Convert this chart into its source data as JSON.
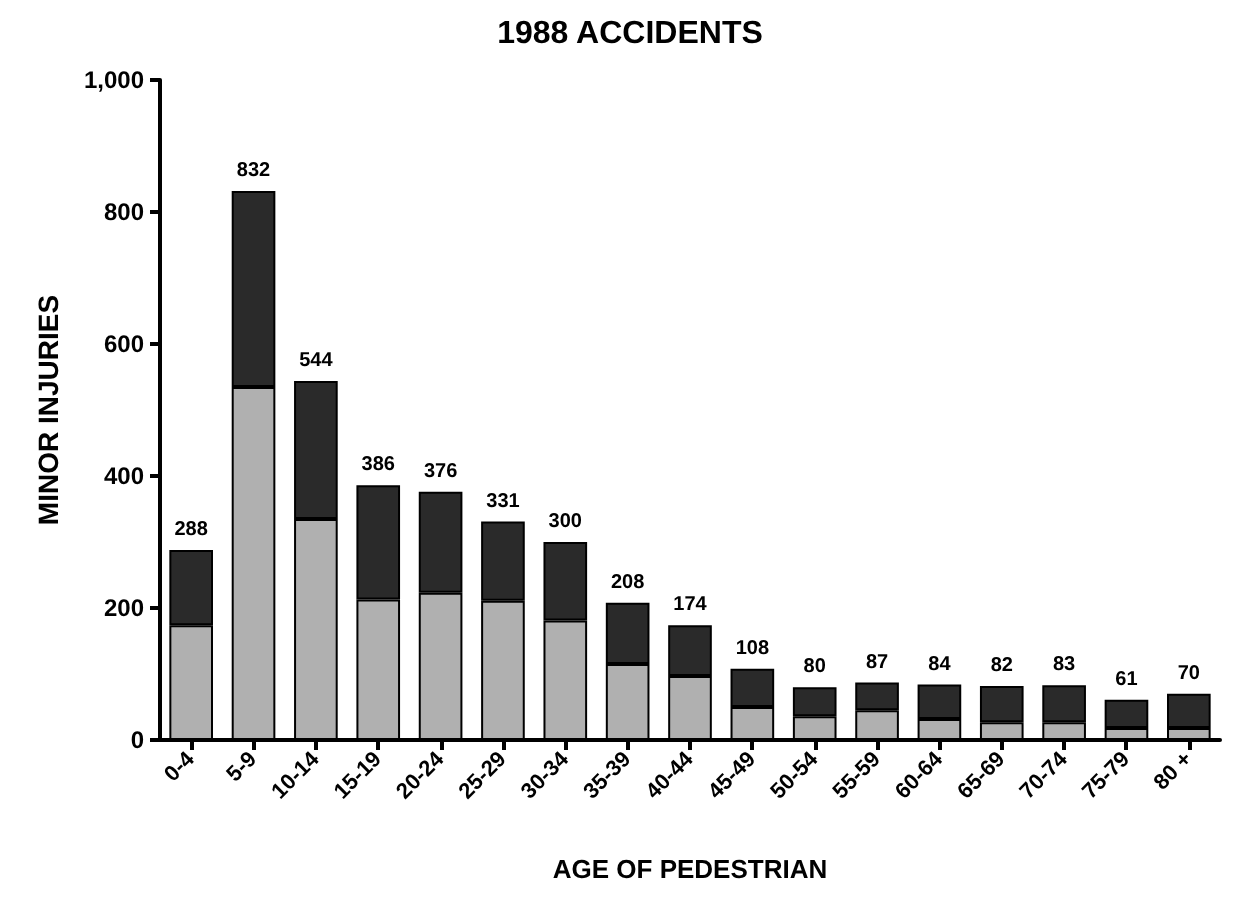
{
  "chart_data": {
    "type": "bar",
    "title": "1988 ACCIDENTS",
    "xlabel": "AGE OF PEDESTRIAN",
    "ylabel": "MINOR INJURIES",
    "categories": [
      "0-4",
      "5-9",
      "10-14",
      "15-19",
      "20-24",
      "25-29",
      "30-34",
      "35-39",
      "40-44",
      "45-49",
      "50-54",
      "55-59",
      "60-64",
      "65-69",
      "70-74",
      "75-79",
      "80 +"
    ],
    "series": [
      {
        "color": "#b0b0b0",
        "values": [
          174,
          535,
          335,
          213,
          223,
          211,
          181,
          115,
          97,
          50,
          36,
          45,
          32,
          27,
          27,
          18,
          18
        ]
      },
      {
        "color": "#2a2a2a",
        "values": [
          114,
          297,
          209,
          173,
          153,
          120,
          119,
          93,
          77,
          58,
          44,
          42,
          52,
          55,
          56,
          43,
          52
        ]
      }
    ],
    "stacked": true,
    "totals": [
      "288",
      "832",
      "544",
      "386",
      "376",
      "331",
      "300",
      "208",
      "174",
      "108",
      "80",
      "87",
      "84",
      "82",
      "83",
      "61",
      "70"
    ],
    "ylim": [
      0,
      1000
    ],
    "yticks": [
      0,
      200,
      400,
      600,
      800,
      {
        "value": 1000,
        "label": "1,000"
      }
    ],
    "grid": false
  }
}
